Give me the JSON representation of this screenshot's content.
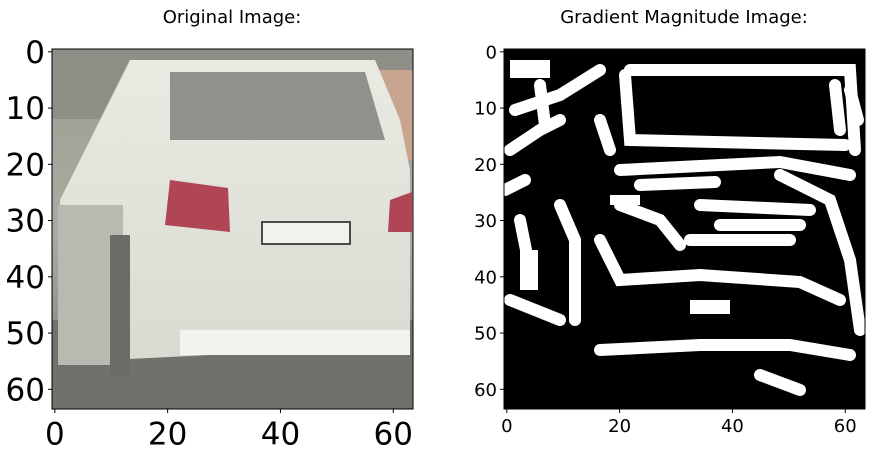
{
  "chart_data": [
    {
      "type": "image",
      "title": "Original Image:",
      "xlim": [
        -0.5,
        63.5
      ],
      "ylim": [
        63.5,
        -0.5
      ],
      "xticks": [
        0,
        20,
        40,
        60
      ],
      "yticks": [
        0,
        10,
        20,
        30,
        40,
        50,
        60
      ],
      "content": "rear view of a silver sedan car"
    },
    {
      "type": "image",
      "title": "Gradient Magnitude Image:",
      "xlim": [
        -0.5,
        63.5
      ],
      "ylim": [
        63.5,
        -0.5
      ],
      "xticks": [
        0,
        20,
        40,
        60
      ],
      "yticks": [
        0,
        10,
        20,
        30,
        40,
        50,
        60
      ],
      "content": "binary black and white gradient magnitude map"
    }
  ]
}
